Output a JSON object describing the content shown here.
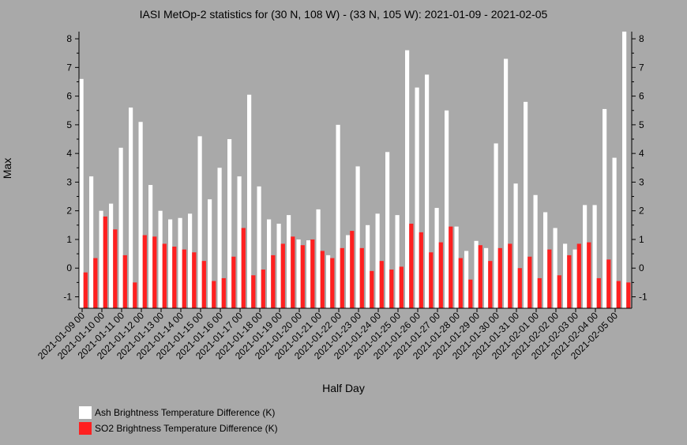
{
  "chart_data": {
    "type": "bar",
    "title": "IASI MetOp-2 statistics for (30 N, 108 W) - (33 N, 105 W): 2021-01-09 - 2021-02-05",
    "xlabel": "Half Day",
    "ylabel": "Max",
    "ylim": [
      -1.4,
      8.25
    ],
    "yticks": [
      -1,
      0,
      1,
      2,
      3,
      4,
      5,
      6,
      7,
      8
    ],
    "tick_labels": [
      "2021-01-09 00",
      "2021-01-10 00",
      "2021-01-11 00",
      "2021-01-12 00",
      "2021-01-13 00",
      "2021-01-14 00",
      "2021-01-15 00",
      "2021-01-16 00",
      "2021-01-17 00",
      "2021-01-18 00",
      "2021-01-19 00",
      "2021-01-20 00",
      "2021-01-21 00",
      "2021-01-22 00",
      "2021-01-23 00",
      "2021-01-24 00",
      "2021-01-25 00",
      "2021-01-26 00",
      "2021-01-27 00",
      "2021-01-28 00",
      "2021-01-29 00",
      "2021-01-30 00",
      "2021-01-31 00",
      "2021-02-01 00",
      "2021-02-02 00",
      "2021-02-03 00",
      "2021-02-04 00",
      "2021-02-05 00"
    ],
    "legend_position": "bottom-left",
    "series": [
      {
        "name": "Ash Brightness Temperature Difference (K)",
        "color": "#ffffff",
        "values": [
          6.6,
          3.2,
          2.0,
          2.25,
          4.2,
          5.6,
          5.1,
          2.9,
          2.0,
          1.7,
          1.75,
          1.9,
          4.6,
          2.4,
          3.5,
          4.5,
          3.2,
          6.05,
          2.85,
          1.7,
          1.55,
          1.85,
          1.0,
          0.97,
          2.05,
          0.45,
          5.0,
          1.15,
          3.55,
          1.5,
          1.9,
          4.05,
          1.85,
          7.6,
          6.3,
          6.75,
          2.1,
          5.5,
          1.45,
          0.6,
          0.95,
          0.7,
          4.35,
          7.3,
          2.95,
          5.8,
          2.55,
          1.95,
          1.4,
          0.85,
          0.65,
          2.2,
          2.2,
          5.55,
          3.85,
          8.25
        ]
      },
      {
        "name": "SO2 Brightness Temperature Difference (K)",
        "color": "#ff2020",
        "values": [
          -0.15,
          0.35,
          1.8,
          1.35,
          0.45,
          -0.5,
          1.15,
          1.1,
          0.85,
          0.75,
          0.65,
          0.55,
          0.25,
          -0.45,
          -0.35,
          0.4,
          1.4,
          -0.25,
          -0.05,
          0.45,
          0.85,
          1.1,
          0.8,
          1.0,
          0.6,
          0.35,
          0.7,
          1.3,
          0.7,
          -0.1,
          0.25,
          -0.05,
          0.05,
          1.55,
          1.25,
          0.55,
          0.9,
          1.45,
          0.35,
          -0.4,
          0.8,
          0.25,
          0.7,
          0.85,
          0.0,
          0.4,
          -0.35,
          0.65,
          -0.25,
          0.45,
          0.85,
          0.9,
          -0.35,
          0.3,
          -0.45,
          -0.5
        ]
      }
    ]
  }
}
